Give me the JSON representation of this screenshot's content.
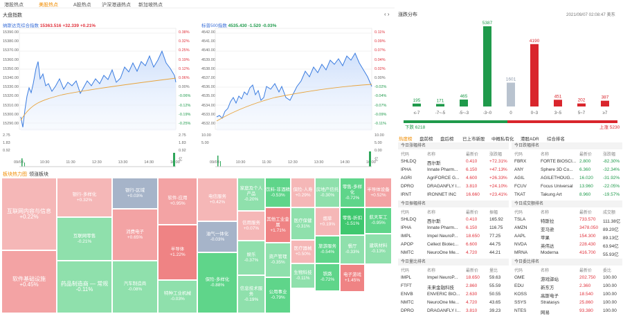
{
  "nav": {
    "tabs": [
      "港股热点",
      "美股热点",
      "A股热点",
      "沪深港通热点",
      "新加坡热点"
    ],
    "active_index": 1
  },
  "market": {
    "title": "大盘指数"
  },
  "heat_section": {
    "title": "板块热力图",
    "subtab": "领涨板块"
  },
  "index_charts": [
    {
      "name": "纳斯达克综合指数",
      "value": "15363.516",
      "change": "+32.339",
      "pct": "+0.21%",
      "y_left": [
        "15390.00",
        "15380.00",
        "15370.00",
        "15360.00",
        "15350.00",
        "15340.00",
        "15330.00",
        "15320.00",
        "15310.00",
        "15300.00",
        "15290.00"
      ],
      "y_right": [
        "0.38%",
        "0.32%",
        "0.25%",
        "0.19%",
        "0.12%",
        "0.06%",
        "0.00%",
        "-0.06%",
        "-0.12%",
        "-0.19%",
        "-0.25%"
      ],
      "vol_left": [
        "2.75",
        "1.83",
        "0.92"
      ],
      "vol_right": [
        "2.75",
        "1.83",
        "0.92",
        "亿"
      ],
      "x_labels": [
        "09/03",
        "10:30",
        "11:30",
        "12:30",
        "13:30",
        "14:30",
        "16:00"
      ]
    },
    {
      "name": "标普500指数",
      "value": "4535.430",
      "change": "-1.520",
      "pct": "-0.03%",
      "y_left": [
        "4542.00",
        "4541.00",
        "4540.00",
        "4539.00",
        "4538.00",
        "4537.00",
        "4536.00",
        "4535.00",
        "4534.00",
        "4533.00",
        "4532.00"
      ],
      "y_right": [
        "0.11%",
        "0.09%",
        "0.07%",
        "0.04%",
        "0.02%",
        "0.00%",
        "-0.02%",
        "-0.04%",
        "-0.07%",
        "-0.09%",
        "-0.11%"
      ],
      "vol_left": [
        "10.00",
        "5.00"
      ],
      "vol_right": [
        "10.00",
        "5.00",
        "0.00",
        "亿"
      ],
      "x_labels": [
        "09/03",
        "10:30",
        "11:30",
        "12:30",
        "13:30",
        "14:30",
        "16:00"
      ]
    }
  ],
  "distribution": {
    "title": "涨跌分布",
    "datetime": "2021/09/07 02:08:47 美东",
    "bars": [
      {
        "label": "≤-7",
        "value": 195
      },
      {
        "label": "-7~-5",
        "value": 171
      },
      {
        "label": "-5~-3",
        "value": 465
      },
      {
        "label": "-3~0",
        "value": 5387
      },
      {
        "label": "0",
        "value": 1601
      },
      {
        "label": "0~3",
        "value": 4190
      },
      {
        "label": "3~5",
        "value": 451
      },
      {
        "label": "5~7",
        "value": 202
      },
      {
        "label": "≥7",
        "value": 387
      }
    ],
    "down_label": "下跌 6218",
    "up_label": "上涨 5230"
  },
  "table_tabs": [
    "热度榜",
    "盘前榜",
    "盘后榜",
    "已上市新股",
    "中概私有化",
    "港股ADR",
    "综合排名"
  ],
  "left_sections": [
    {
      "title": "今日涨幅排名",
      "headers": [
        "代码",
        "名称",
        "最新价",
        "涨跌幅"
      ],
      "rows": [
        [
          "SHLDQ",
          "西尔斯",
          "0.410",
          "+72.31%"
        ],
        [
          "IPHA",
          "Innate Pharm...",
          "6.150",
          "+47.13%"
        ],
        [
          "AGRI",
          "AgriFORCE G...",
          "4.600",
          "+26.33%"
        ],
        [
          "DPRO",
          "DRAGANFLY I...",
          "3.810",
          "+24.10%"
        ],
        [
          "IRNT",
          "IRONNET INC",
          "16.660",
          "+23.41%"
        ]
      ]
    },
    {
      "title": "今日振幅排名",
      "headers": [
        "代码",
        "名称",
        "最新价",
        "振幅"
      ],
      "rows": [
        [
          "SHLDQ",
          "西尔斯",
          "0.410",
          "165.92"
        ],
        [
          "IPHA",
          "Innate Pharm...",
          "6.150",
          "116.75"
        ],
        [
          "IMPL",
          "Impel NeuroP...",
          "18.650",
          "77.25"
        ],
        [
          "APOP",
          "Cellect Biotec...",
          "6.600",
          "44.75"
        ],
        [
          "NMTC",
          "NeuroOne Me...",
          "4.720",
          "44.21"
        ]
      ]
    },
    {
      "title": "今日量比排名",
      "headers": [
        "代码",
        "名称",
        "最新价",
        "量比"
      ],
      "rows": [
        [
          "IMPL",
          "Impel NeuroP...",
          "18.650",
          "59.63"
        ],
        [
          "FTFT",
          "未来金融科技",
          "2.860",
          "55.59"
        ],
        [
          "ENVB",
          "ENVERIC BIO...",
          "2.630",
          "50.55"
        ],
        [
          "NMTC",
          "NeuroOne Me...",
          "4.720",
          "43.65"
        ],
        [
          "DPRO",
          "DRAGANFLY I...",
          "3.810",
          "39.23"
        ]
      ]
    }
  ],
  "right_sections": [
    {
      "title": "今日跌幅排名",
      "headers": [
        "代码",
        "名称",
        "最新价",
        "涨跌幅"
      ],
      "rows": [
        [
          "FBRX",
          "FORTE BIOSCI...",
          "2.800",
          "-82.30%"
        ],
        [
          "ANY",
          "Sphere 3D Co...",
          "6.360",
          "-32.34%"
        ],
        [
          "AGIL",
          "AGILETHOUG...",
          "16.020",
          "-31.92%"
        ],
        [
          "FCUV",
          "Focus Universal",
          "13.960",
          "-22.05%"
        ],
        [
          "TKAT",
          "Takung Art",
          "8.960",
          "-19.57%"
        ]
      ]
    },
    {
      "title": "今日成交额排名",
      "headers": [
        "代码",
        "名称",
        "最新价",
        "成交额"
      ],
      "rows": [
        [
          "TSLA",
          "特斯拉",
          "733.570",
          "111.38亿"
        ],
        [
          "AMZN",
          "亚马逊",
          "3478.050",
          "89.20亿"
        ],
        [
          "AAPL",
          "苹果",
          "154.300",
          "89.13亿"
        ],
        [
          "NVDA",
          "英伟达",
          "228.430",
          "63.94亿"
        ],
        [
          "MRNA",
          "Moderna",
          "416.700",
          "55.93亿"
        ]
      ]
    },
    {
      "title": "今日委比排名",
      "headers": [
        "代码",
        "名称",
        "最新价",
        "委比"
      ],
      "rows": [
        [
          "GME",
          "游戏驿站",
          "202.750",
          "100.00"
        ],
        [
          "EDU",
          "新东方",
          "2.360",
          "100.00"
        ],
        [
          "KOSS",
          "高斯电子",
          "18.540",
          "100.00"
        ],
        [
          "SSYS",
          "Stratasys",
          "25.860",
          "100.00"
        ],
        [
          "NTES",
          "网易",
          "93.380",
          "100.00"
        ]
      ]
    }
  ],
  "treemap": [
    {
      "name": "互联网内容与信息",
      "pct": "+0.22%",
      "color": "#f5b7b7"
    },
    {
      "name": "软件基础设施",
      "pct": "+0.45%",
      "color": "#f3a3a4"
    },
    {
      "name": "银行-多样化",
      "pct": "+0.32%",
      "color": "#f5b7b7"
    },
    {
      "name": "互联网零售",
      "pct": "-0.21%",
      "color": "#8fe0ac"
    },
    {
      "name": "药品制造商 — 常规",
      "pct": "-0.11%",
      "color": "#8fe0ac"
    },
    {
      "name": "银行-区域",
      "pct": "+0.03%",
      "color": "#a6b4c9"
    },
    {
      "name": "消费电子",
      "pct": "+0.65%",
      "color": "#f3a3a4"
    },
    {
      "name": "汽车制造商",
      "pct": "-0.08%",
      "color": "#8fe0ac"
    },
    {
      "name": "软件-应用",
      "pct": "+0.95%",
      "color": "#f3a3a4"
    },
    {
      "name": "半导体",
      "pct": "+1.22%",
      "color": "#ef8384"
    },
    {
      "name": "特种工业机械",
      "pct": "-0.03%",
      "color": "#8fe0ac"
    },
    {
      "name": "电信服务",
      "pct": "+0.42%",
      "color": "#f5b7b7"
    },
    {
      "name": "油气一体化",
      "pct": "-0.03%",
      "color": "#a6b4c9"
    },
    {
      "name": "保险-多样化",
      "pct": "-0.88%",
      "color": "#5fd58a"
    },
    {
      "name": "家庭及个人产品",
      "pct": "-0.20%",
      "color": "#8fe0ac"
    },
    {
      "name": "信用服务",
      "pct": "+0.07%",
      "color": "#f5b7b7"
    },
    {
      "name": "娱乐",
      "pct": "-0.37%",
      "color": "#8fe0ac"
    },
    {
      "name": "信息技术服务",
      "pct": "-0.19%",
      "color": "#8fe0ac"
    },
    {
      "name": "饮料-非酒精",
      "pct": "-0.53%",
      "color": "#5fd58a"
    },
    {
      "name": "其他工业金属",
      "pct": "+1.71%",
      "color": "#ef8384"
    },
    {
      "name": "资产管理",
      "pct": "-0.35%",
      "color": "#8fe0ac"
    },
    {
      "name": "公用事业",
      "pct": "-0.79%",
      "color": "#5fd58a"
    },
    {
      "name": "保险-人寿",
      "pct": "+0.29%",
      "color": "#f5b7b7"
    },
    {
      "name": "医疗保健",
      "pct": "-0.31%",
      "color": "#8fe0ac"
    },
    {
      "name": "医疗器械",
      "pct": "+0.50%",
      "color": "#f5b7b7"
    },
    {
      "name": "房地产信托",
      "pct": "-0.30%",
      "color": "#8fe0ac"
    },
    {
      "name": "烟草",
      "pct": "+0.19%",
      "color": "#f5b7b7"
    },
    {
      "name": "零售-多样化",
      "pct": "-0.72%",
      "color": "#5fd58a"
    },
    {
      "name": "零售-折扣",
      "pct": "-1.51%",
      "color": "#3fc86f"
    },
    {
      "name": "半导体设备",
      "pct": "+0.52%",
      "color": "#f3a3a4"
    },
    {
      "name": "航天军工",
      "pct": "-0.95%",
      "color": "#5fd58a"
    },
    {
      "name": "生物科技",
      "pct": "-0.11%",
      "color": "#8fe0ac"
    },
    {
      "name": "旅游服务",
      "pct": "-0.54%",
      "color": "#5fd58a"
    },
    {
      "name": "餐厅",
      "pct": "-0.33%",
      "color": "#8fe0ac"
    },
    {
      "name": "铁路",
      "pct": "-0.72%",
      "color": "#5fd58a"
    },
    {
      "name": "电子游戏",
      "pct": "+1.45%",
      "color": "#ef8384"
    },
    {
      "name": "建筑材料",
      "pct": "-0.13%",
      "color": "#8fe0ac"
    }
  ],
  "chart_data": [
    {
      "type": "bar",
      "title": "涨跌分布",
      "categories": [
        "≤-7",
        "-7~-5",
        "-5~-3",
        "-3~0",
        "0",
        "0~3",
        "3~5",
        "5~7",
        "≥7"
      ],
      "values": [
        195,
        171,
        465,
        5387,
        1601,
        4190,
        451,
        202,
        387
      ],
      "colors": [
        "#1f9a4b",
        "#1f9a4b",
        "#1f9a4b",
        "#1f9a4b",
        "#b9c3cf",
        "#d9252c",
        "#d9252c",
        "#d9252c",
        "#d9252c"
      ]
    }
  ]
}
